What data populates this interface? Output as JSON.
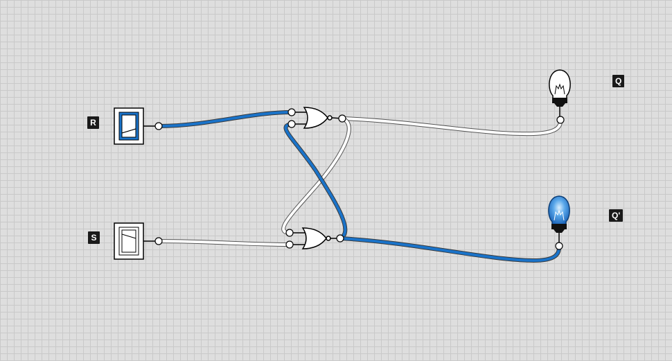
{
  "labels": {
    "r": "R",
    "s": "S",
    "q": "Q",
    "q_not": "Q'"
  },
  "inputs": {
    "r_switch": {
      "label": "R",
      "state": "on"
    },
    "s_switch": {
      "label": "S",
      "state": "off"
    }
  },
  "outputs": {
    "q_bulb": {
      "label": "Q",
      "state": "off",
      "icon": "lightbulb-icon"
    },
    "q_not_bulb": {
      "label": "Q'",
      "state": "on",
      "icon": "lightbulb-icon"
    }
  },
  "gates": [
    {
      "type": "NOR",
      "name": "top-nor-gate"
    },
    {
      "type": "NOR",
      "name": "bottom-nor-gate"
    }
  ],
  "colors": {
    "wire_active": "#1a73c9",
    "wire_inactive": "#ffffff",
    "wire_outline": "#555555",
    "background": "#dedede",
    "grid": "#c9c9c9"
  }
}
